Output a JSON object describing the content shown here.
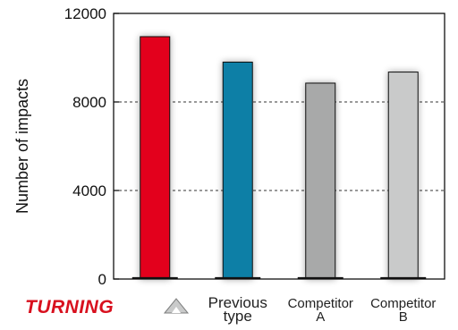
{
  "chart_data": {
    "type": "bar",
    "ylabel": "Number of impacts",
    "ylim": [
      0,
      12000
    ],
    "y_ticks": [
      "0",
      "4000",
      "8000",
      "12000"
    ],
    "grid_lines": [
      4000,
      8000
    ],
    "categories": [
      {
        "name": "TURNING",
        "lines": [
          "TURNING"
        ],
        "value": 10950,
        "color": "#e3061f",
        "logo": true
      },
      {
        "name": "Previous type",
        "lines": [
          "Previous",
          "type"
        ],
        "value": 9800,
        "color": "#0a7fa6",
        "logo": false
      },
      {
        "name": "Competitor A",
        "lines": [
          "Competitor",
          "A"
        ],
        "value": 8850,
        "color": "#a8a9a9",
        "logo": false
      },
      {
        "name": "Competitor B",
        "lines": [
          "Competitor",
          "B"
        ],
        "value": 9350,
        "color": "#c9caca",
        "logo": false
      }
    ]
  }
}
